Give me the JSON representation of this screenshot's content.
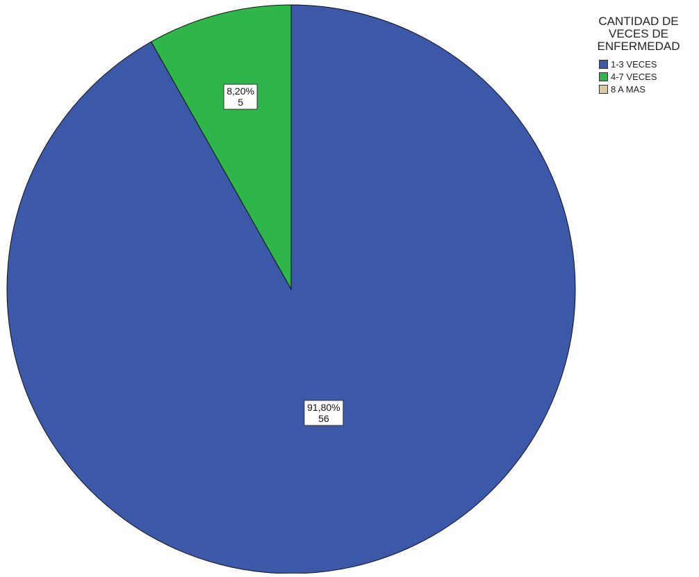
{
  "chart_data": {
    "type": "pie",
    "legend_title": [
      "CANTIDAD DE",
      "VECES DE",
      "ENFERMEDAD"
    ],
    "legend_position": "top-right",
    "start_angle_deg": 0,
    "direction": "clockwise",
    "slices": [
      {
        "label": "1-3 VECES",
        "value": 56,
        "percent": 91.8,
        "percent_label": "91,80%",
        "count_label": "56",
        "color": "#3c58a8"
      },
      {
        "label": "4-7 VECES",
        "value": 5,
        "percent": 8.2,
        "percent_label": "8,20%",
        "count_label": "5",
        "color": "#2fb64a"
      },
      {
        "label": "8 A MAS",
        "value": 0,
        "percent": 0,
        "percent_label": "",
        "count_label": "",
        "color": "#d7c99e"
      }
    ]
  }
}
